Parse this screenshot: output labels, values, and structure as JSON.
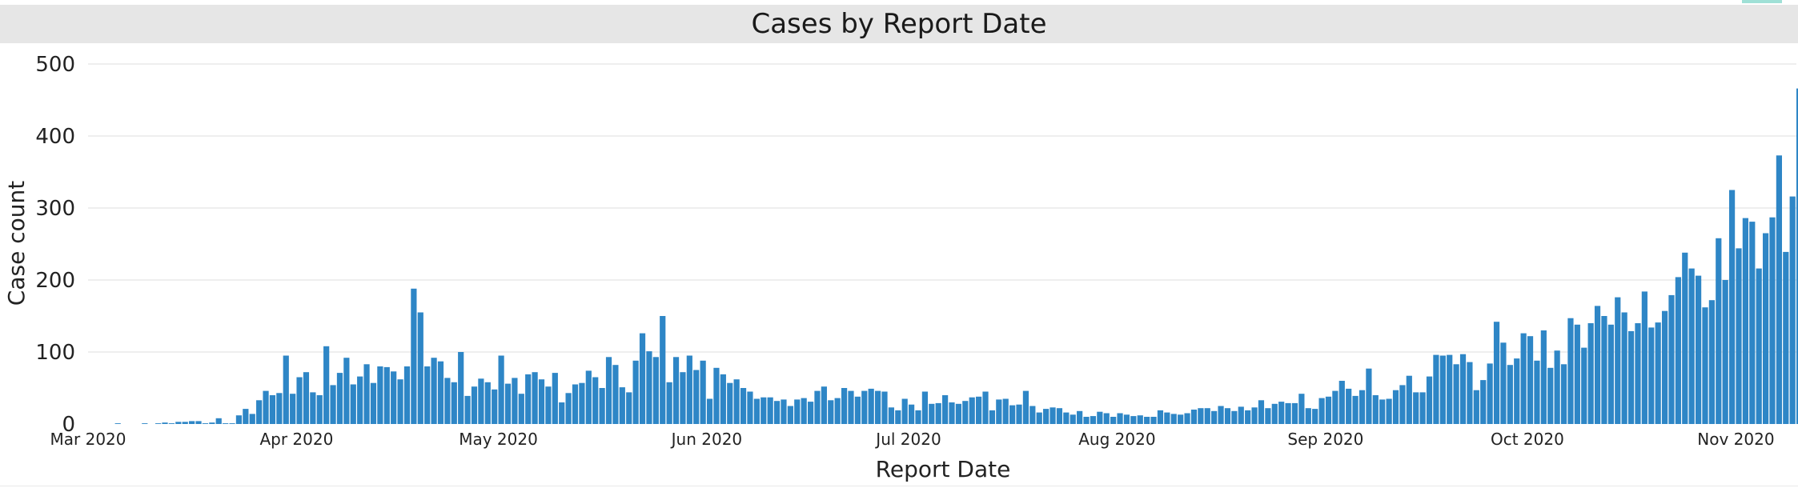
{
  "chart_data": {
    "type": "bar",
    "title": "Cases by Report Date",
    "xlabel": "Report Date",
    "ylabel": "Case count",
    "ylim": [
      0,
      500
    ],
    "yticks": [
      0,
      100,
      200,
      300,
      400,
      500
    ],
    "grid": true,
    "bar_color": "#2e86c6",
    "x_start": "2020-03-01",
    "x_end": "2020-11-09",
    "x_tick_labels": [
      {
        "date": "2020-03-01",
        "label": "Mar 2020"
      },
      {
        "date": "2020-04-01",
        "label": "Apr 2020"
      },
      {
        "date": "2020-05-01",
        "label": "May 2020"
      },
      {
        "date": "2020-06-01",
        "label": "Jun 2020"
      },
      {
        "date": "2020-07-01",
        "label": "Jul 2020"
      },
      {
        "date": "2020-08-01",
        "label": "Aug 2020"
      },
      {
        "date": "2020-09-01",
        "label": "Sep 2020"
      },
      {
        "date": "2020-10-01",
        "label": "Oct 2020"
      },
      {
        "date": "2020-11-01",
        "label": "Nov 2020"
      }
    ],
    "values": [
      0,
      0,
      0,
      0,
      1,
      0,
      0,
      0,
      1,
      0,
      1,
      2,
      1,
      3,
      3,
      4,
      4,
      1,
      2,
      8,
      1,
      1,
      12,
      21,
      14,
      33,
      46,
      40,
      43,
      95,
      42,
      65,
      72,
      44,
      40,
      108,
      54,
      71,
      92,
      55,
      66,
      83,
      57,
      80,
      79,
      73,
      62,
      80,
      188,
      155,
      80,
      92,
      87,
      64,
      58,
      100,
      39,
      52,
      63,
      58,
      48,
      95,
      56,
      64,
      42,
      69,
      72,
      62,
      52,
      71,
      30,
      43,
      55,
      57,
      74,
      65,
      50,
      93,
      82,
      51,
      44,
      88,
      126,
      101,
      93,
      150,
      58,
      93,
      72,
      95,
      75,
      88,
      35,
      78,
      69,
      57,
      62,
      50,
      45,
      35,
      37,
      37,
      32,
      34,
      25,
      34,
      36,
      31,
      46,
      52,
      33,
      36,
      50,
      46,
      38,
      46,
      49,
      46,
      45,
      23,
      19,
      35,
      27,
      19,
      45,
      28,
      29,
      40,
      30,
      28,
      32,
      37,
      38,
      45,
      19,
      34,
      35,
      26,
      27,
      46,
      25,
      16,
      21,
      23,
      22,
      16,
      13,
      18,
      10,
      11,
      17,
      15,
      10,
      15,
      13,
      11,
      12,
      10,
      10,
      19,
      16,
      14,
      13,
      15,
      20,
      22,
      22,
      18,
      25,
      22,
      18,
      24,
      19,
      23,
      33,
      22,
      28,
      31,
      29,
      29,
      42,
      22,
      21,
      36,
      38,
      46,
      60,
      49,
      39,
      47,
      77,
      40,
      34,
      35,
      47,
      54,
      67,
      44,
      44,
      66,
      96,
      95,
      96,
      83,
      97,
      86,
      47,
      61,
      84,
      142,
      113,
      82,
      91,
      126,
      122,
      88,
      130,
      78,
      102,
      83,
      147,
      138,
      106,
      140,
      164,
      150,
      138,
      176,
      155,
      129,
      140,
      184,
      134,
      141,
      157,
      179,
      204,
      238,
      216,
      206,
      162,
      172,
      258,
      200,
      325,
      244,
      286,
      281,
      216,
      265,
      287,
      373,
      239,
      316,
      466
    ]
  }
}
